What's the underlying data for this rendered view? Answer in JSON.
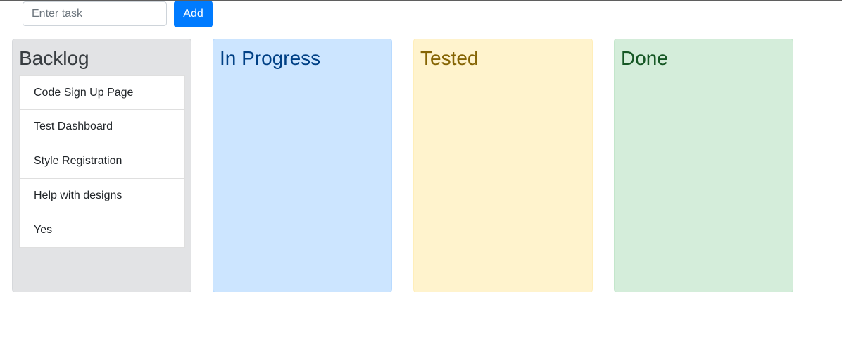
{
  "form": {
    "input_placeholder": "Enter task",
    "input_value": "",
    "add_label": "Add"
  },
  "columns": [
    {
      "title": "Backlog",
      "tasks": [
        "Code Sign Up Page",
        "Test Dashboard",
        "Style Registration",
        "Help with designs",
        "Yes"
      ]
    },
    {
      "title": "In Progress",
      "tasks": []
    },
    {
      "title": "Tested",
      "tasks": []
    },
    {
      "title": "Done",
      "tasks": []
    }
  ],
  "colors": {
    "primary": "#007bff",
    "backlog_bg": "#e2e3e5",
    "in_progress_bg": "#cce5ff",
    "tested_bg": "#fff3cd",
    "done_bg": "#d4edda"
  }
}
